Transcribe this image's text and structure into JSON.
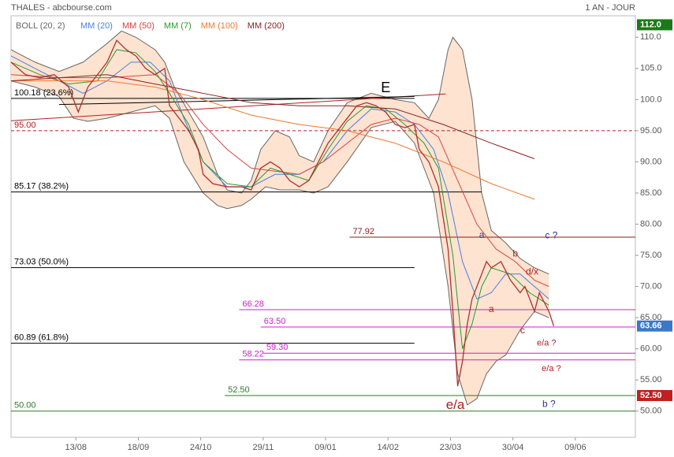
{
  "chart_data": {
    "type": "line",
    "title": "THALES - abcbourse.com",
    "subtitle": "1 AN - JOUR",
    "xlim": [
      0,
      260
    ],
    "xticks": [
      {
        "value": 27,
        "label": "13/08"
      },
      {
        "value": 53,
        "label": "18/09"
      },
      {
        "value": 79,
        "label": "24/10"
      },
      {
        "value": 105,
        "label": "29/11"
      },
      {
        "value": 131,
        "label": "09/01"
      },
      {
        "value": 157,
        "label": "14/02"
      },
      {
        "value": 183,
        "label": "23/03"
      },
      {
        "value": 209,
        "label": "30/04"
      },
      {
        "value": 235,
        "label": "09/06"
      }
    ],
    "ylim": [
      45.8,
      113.7
    ],
    "yticks": [
      {
        "value": 50,
        "label": "50.00"
      },
      {
        "value": 55,
        "label": "55.00"
      },
      {
        "value": 60,
        "label": "60.00"
      },
      {
        "value": 65,
        "label": "65.00"
      },
      {
        "value": 70,
        "label": "70.00"
      },
      {
        "value": 75,
        "label": "75.00"
      },
      {
        "value": 80,
        "label": "80.00"
      },
      {
        "value": 85,
        "label": "85.00"
      },
      {
        "value": 90,
        "label": "90.00"
      },
      {
        "value": 95,
        "label": "95.00"
      },
      {
        "value": 100,
        "label": "100.0"
      },
      {
        "value": 105,
        "label": "105.0"
      },
      {
        "value": 110,
        "label": "110.0"
      }
    ],
    "price": {
      "color": "#b03030",
      "x": [
        0,
        6,
        12,
        18,
        24,
        28,
        32,
        36,
        40,
        44,
        48,
        52,
        56,
        60,
        64,
        66,
        70,
        74,
        78,
        80,
        84,
        90,
        96,
        100,
        104,
        108,
        112,
        116,
        120,
        124,
        128,
        132,
        136,
        140,
        144,
        148,
        152,
        156,
        160,
        164,
        168,
        170,
        174,
        178,
        180,
        182,
        184,
        186,
        188,
        190,
        192,
        194,
        196,
        198,
        200,
        204,
        208,
        212,
        214,
        216,
        218,
        220,
        222,
        224,
        226
      ],
      "values": [
        106,
        104,
        103.5,
        104,
        102,
        98,
        102,
        104,
        106,
        109.5,
        108,
        107,
        105,
        104,
        105,
        99,
        97,
        95,
        92,
        88,
        86.5,
        86,
        86,
        85.5,
        89,
        90,
        89,
        87,
        86,
        87,
        90,
        93,
        95,
        97,
        99,
        99.5,
        99,
        98,
        96,
        95.5,
        96,
        92,
        90,
        86,
        81,
        76,
        66,
        54,
        58,
        64,
        68,
        70,
        72,
        74,
        73,
        74,
        71,
        69,
        70,
        68,
        66,
        69,
        67.5,
        66,
        63.66
      ]
    },
    "bollinger": {
      "name": "BOLL (20, 2)",
      "color": "#666666",
      "fill": "#fde3d0",
      "upper": {
        "x": [
          0,
          10,
          20,
          30,
          40,
          46,
          52,
          60,
          64,
          68,
          74,
          80,
          86,
          90,
          96,
          100,
          104,
          110,
          116,
          120,
          126,
          132,
          140,
          150,
          160,
          168,
          174,
          178,
          182,
          184,
          188,
          192,
          196,
          200,
          206,
          212,
          218,
          224
        ],
        "values": [
          108,
          106,
          104.5,
          106,
          109,
          111,
          110,
          108,
          106,
          102,
          98,
          94,
          88,
          85.5,
          85,
          87,
          92,
          95,
          94,
          91,
          90,
          95,
          99.5,
          101,
          100,
          99.5,
          97,
          100,
          108,
          110,
          108,
          100,
          85,
          79,
          77,
          74.5,
          73,
          72
        ]
      },
      "lower": {
        "x": [
          0,
          10,
          20,
          26,
          32,
          40,
          50,
          60,
          66,
          72,
          80,
          86,
          90,
          96,
          100,
          106,
          112,
          120,
          126,
          132,
          140,
          150,
          160,
          168,
          176,
          182,
          186,
          190,
          194,
          198,
          202,
          206,
          212,
          218,
          224
        ],
        "values": [
          103,
          102,
          100.5,
          97,
          96.5,
          97,
          98,
          99,
          97,
          90,
          85,
          83,
          82.5,
          83,
          84,
          86,
          85.5,
          85.5,
          85,
          86,
          90,
          95.5,
          96.5,
          93,
          85,
          70,
          56,
          51,
          52,
          56,
          58,
          59,
          63,
          66,
          65
        ]
      }
    },
    "series": [
      {
        "name": "MM (20)",
        "color": "#4a7fe0",
        "x": [
          0,
          10,
          20,
          30,
          40,
          50,
          58,
          66,
          72,
          80,
          90,
          100,
          110,
          120,
          130,
          140,
          150,
          160,
          168,
          176,
          182,
          188,
          194,
          200,
          206,
          212,
          218,
          224
        ],
        "values": [
          107,
          105,
          103,
          101,
          103,
          106,
          106,
          103,
          97,
          90,
          86,
          86,
          88,
          88,
          90,
          95,
          98.5,
          98,
          96,
          92,
          85,
          74,
          68,
          69,
          72,
          72,
          70,
          68
        ]
      },
      {
        "name": "MM (50)",
        "color": "#e04040",
        "x": [
          0,
          20,
          40,
          60,
          70,
          80,
          90,
          100,
          110,
          120,
          130,
          140,
          150,
          160,
          170,
          178,
          186,
          194,
          202,
          210,
          218,
          224
        ],
        "values": [
          104,
          103.5,
          103.5,
          104,
          101,
          96,
          92,
          89,
          88.5,
          88,
          90,
          93,
          96,
          97,
          96,
          94,
          87,
          80,
          76,
          74,
          71,
          70
        ]
      },
      {
        "name": "MM (7)",
        "color": "#2a9a2a",
        "x": [
          0,
          12,
          24,
          36,
          44,
          52,
          60,
          66,
          74,
          80,
          90,
          100,
          108,
          116,
          124,
          132,
          140,
          148,
          156,
          164,
          172,
          178,
          184,
          188,
          192,
          196,
          200,
          208,
          216,
          224
        ],
        "values": [
          106,
          104,
          102.5,
          103,
          108,
          107.5,
          104.5,
          101,
          96,
          90,
          86.5,
          86,
          89,
          88,
          87,
          92,
          96.5,
          99,
          98.5,
          96,
          93,
          89,
          75,
          60,
          64,
          70,
          73,
          72,
          69,
          67
        ]
      },
      {
        "name": "MM (100)",
        "color": "#f07830",
        "x": [
          0,
          40,
          60,
          80,
          100,
          120,
          140,
          160,
          180,
          200,
          218
        ],
        "values": [
          103,
          103,
          102,
          100,
          97.5,
          96,
          95,
          93,
          90,
          86.5,
          84
        ]
      },
      {
        "name": "MM (200)",
        "color": "#8b2020",
        "x": [
          0,
          40,
          60,
          80,
          100,
          120,
          140,
          160,
          180,
          200,
          218
        ],
        "values": [
          103,
          104,
          102.5,
          101,
          99.5,
          99,
          99,
          98.5,
          96,
          93,
          90.5
        ]
      }
    ],
    "trendlines": [
      {
        "color": "#b02020",
        "x": [
          0,
          181
        ],
        "values": [
          96.6,
          100.9
        ]
      },
      {
        "color": "#000000",
        "x": [
          20,
          168
        ],
        "values": [
          99.2,
          100.5
        ]
      }
    ],
    "levels": [
      {
        "value": 100.18,
        "label": "100.18 (23.6%)",
        "color": "#000000",
        "x": [
          0,
          168
        ]
      },
      {
        "value": 95,
        "label": "95.00",
        "color": "#b02020",
        "x": [
          0,
          260
        ],
        "dash": true
      },
      {
        "value": 85.17,
        "label": "85.17 (38.2%)",
        "color": "#000000",
        "x": [
          0,
          196
        ]
      },
      {
        "value": 77.92,
        "label": "77.92",
        "color": "#8b1a1a",
        "x": [
          141,
          260
        ]
      },
      {
        "value": 73.03,
        "label": "73.03 (50.0%)",
        "color": "#000000",
        "x": [
          0,
          168
        ]
      },
      {
        "value": 66.28,
        "label": "66.28",
        "color": "#cc22cc",
        "x": [
          95,
          260
        ]
      },
      {
        "value": 63.5,
        "label": "63.50",
        "color": "#cc22cc",
        "x": [
          104,
          260
        ]
      },
      {
        "value": 60.89,
        "label": "60.89 (61.8%)",
        "color": "#000000",
        "x": [
          0,
          168
        ]
      },
      {
        "value": 59.3,
        "label": "59.30",
        "color": "#cc22cc",
        "x": [
          105,
          260
        ]
      },
      {
        "value": 58.22,
        "label": "58.22",
        "color": "#cc22cc",
        "x": [
          95,
          260
        ]
      },
      {
        "value": 52.5,
        "label": "52.50",
        "color": "#2a7a2a",
        "x": [
          89,
          260
        ]
      },
      {
        "value": 50,
        "label": "50.00",
        "color": "#2a7a2a",
        "x": [
          0,
          260
        ]
      }
    ],
    "annotations": [
      {
        "text": "E",
        "x": 156,
        "y": 101.8,
        "color": "#000000",
        "size": 18
      },
      {
        "text": "a",
        "x": 196,
        "y": 78.2,
        "color": "#333399",
        "size": 12
      },
      {
        "text": "c ?",
        "x": 225,
        "y": 78.1,
        "color": "#333399",
        "size": 12
      },
      {
        "text": "b",
        "x": 210,
        "y": 75.2,
        "color": "#b02020",
        "size": 12
      },
      {
        "text": "d/x",
        "x": 217,
        "y": 72.3,
        "color": "#b02020",
        "size": 12
      },
      {
        "text": "a",
        "x": 200,
        "y": 66.3,
        "color": "#b02020",
        "size": 12
      },
      {
        "text": "c",
        "x": 213,
        "y": 62.9,
        "color": "#b02020",
        "size": 12
      },
      {
        "text": "e/a ?",
        "x": 223,
        "y": 60.9,
        "color": "#b02020",
        "size": 11
      },
      {
        "text": "e/a ?",
        "x": 225,
        "y": 56.8,
        "color": "#b02020",
        "size": 11
      },
      {
        "text": "e/a",
        "x": 185,
        "y": 50.9,
        "color": "#b02020",
        "size": 17
      },
      {
        "text": "b ?",
        "x": 224,
        "y": 51.1,
        "color": "#333399",
        "size": 12
      }
    ],
    "price_tags": [
      {
        "value": 112,
        "label": "112.0",
        "color": "#1a7a1a"
      },
      {
        "value": 63.66,
        "label": "63.66",
        "color": "#3a78c8"
      },
      {
        "value": 52.5,
        "label": "52.50",
        "color": "#c02020"
      }
    ]
  }
}
